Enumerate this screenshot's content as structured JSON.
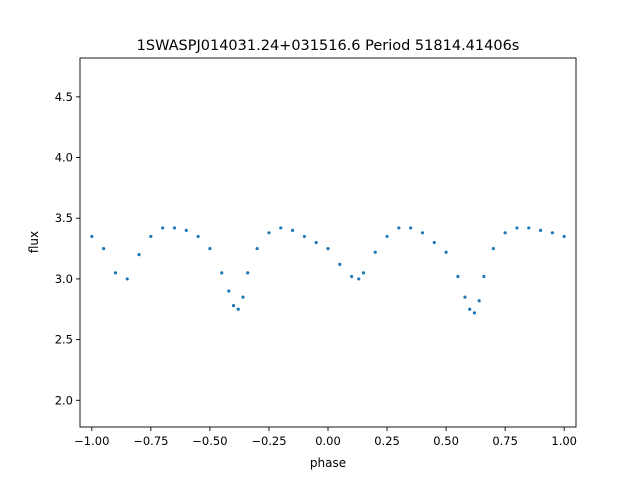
{
  "chart_data": {
    "type": "scatter",
    "title": "1SWASPJ014031.24+031516.6 Period 51814.41406s",
    "xlabel": "phase",
    "ylabel": "flux",
    "xlim": [
      -1.05,
      1.05
    ],
    "ylim": [
      1.78,
      4.82
    ],
    "x_ticks": [
      -1.0,
      -0.75,
      -0.5,
      -0.25,
      0.0,
      0.25,
      0.5,
      0.75,
      1.0
    ],
    "x_tick_labels": [
      "−1.00",
      "−0.75",
      "−0.50",
      "−0.25",
      "0.00",
      "0.25",
      "0.50",
      "0.75",
      "1.00"
    ],
    "y_ticks": [
      2.0,
      2.5,
      3.0,
      3.5,
      4.0,
      4.5
    ],
    "y_tick_labels": [
      "2.0",
      "2.5",
      "3.0",
      "3.5",
      "4.0",
      "4.5"
    ],
    "grid": false,
    "legend": "none",
    "point_color": "#1f77b4",
    "series": [
      {
        "x": [
          -1.0,
          -0.95,
          -0.9,
          -0.85,
          -0.8,
          -0.75,
          -0.7,
          -0.65,
          -0.6,
          -0.55,
          -0.5,
          -0.45,
          -0.42,
          -0.4,
          -0.38,
          -0.36,
          -0.34,
          -0.3,
          -0.25,
          -0.2,
          -0.15,
          -0.1,
          -0.05,
          0.0,
          0.05,
          0.1,
          0.13,
          0.15,
          0.2,
          0.25,
          0.3,
          0.35,
          0.4,
          0.45,
          0.5,
          0.55,
          0.58,
          0.6,
          0.62,
          0.64,
          0.66,
          0.7,
          0.75,
          0.8,
          0.85,
          0.9,
          0.95,
          1.0
        ],
        "y": [
          3.35,
          3.25,
          3.05,
          3.0,
          3.2,
          3.35,
          3.42,
          3.42,
          3.4,
          3.35,
          3.25,
          3.05,
          2.9,
          2.78,
          2.75,
          2.85,
          3.05,
          3.25,
          3.38,
          3.42,
          3.4,
          3.35,
          3.3,
          3.25,
          3.12,
          3.02,
          3.0,
          3.05,
          3.22,
          3.35,
          3.42,
          3.42,
          3.38,
          3.3,
          3.22,
          3.02,
          2.85,
          2.75,
          2.72,
          2.82,
          3.02,
          3.25,
          3.38,
          3.42,
          3.42,
          3.4,
          3.38,
          3.35
        ]
      }
    ]
  }
}
